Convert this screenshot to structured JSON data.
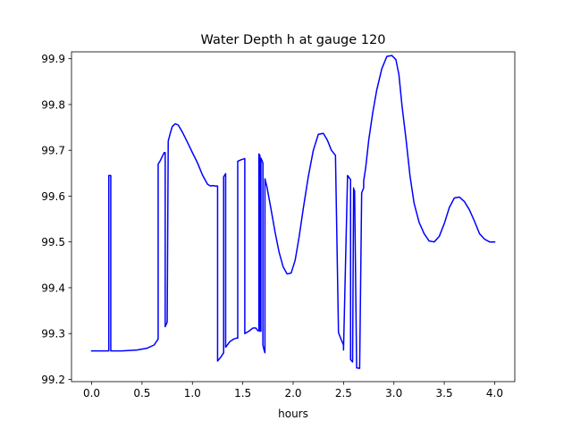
{
  "chart_data": {
    "type": "line",
    "title": "Water Depth h at gauge 120",
    "xlabel": "hours",
    "ylabel": "",
    "xlim": [
      -0.2,
      4.2
    ],
    "ylim": [
      99.195,
      99.915
    ],
    "xticks": [
      0.0,
      0.5,
      1.0,
      1.5,
      2.0,
      2.5,
      3.0,
      3.5,
      4.0
    ],
    "xtick_labels": [
      "0.0",
      "0.5",
      "1.0",
      "1.5",
      "2.0",
      "2.5",
      "3.0",
      "3.5",
      "4.0"
    ],
    "yticks": [
      99.2,
      99.3,
      99.4,
      99.5,
      99.6,
      99.7,
      99.8,
      99.9
    ],
    "ytick_labels": [
      "99.2",
      "99.3",
      "99.4",
      "99.5",
      "99.6",
      "99.7",
      "99.8",
      "99.9"
    ],
    "grid": false,
    "series": [
      {
        "color": "#0000ff",
        "x": [
          0.0,
          0.17,
          0.17,
          0.18,
          0.18,
          0.19,
          0.19,
          0.3,
          0.45,
          0.55,
          0.62,
          0.66,
          0.66,
          0.68,
          0.72,
          0.73,
          0.73,
          0.75,
          0.75,
          0.76,
          0.78,
          0.8,
          0.83,
          0.86,
          0.9,
          0.95,
          1.0,
          1.05,
          1.1,
          1.15,
          1.18,
          1.2,
          1.23,
          1.25,
          1.25,
          1.28,
          1.31,
          1.31,
          1.33,
          1.33,
          1.37,
          1.41,
          1.44,
          1.45,
          1.45,
          1.48,
          1.52,
          1.52,
          1.56,
          1.6,
          1.63,
          1.65,
          1.66,
          1.66,
          1.67,
          1.67,
          1.68,
          1.68,
          1.69,
          1.7,
          1.7,
          1.71,
          1.72,
          1.72,
          1.74,
          1.78,
          1.82,
          1.86,
          1.9,
          1.94,
          1.98,
          2.02,
          2.06,
          2.1,
          2.15,
          2.2,
          2.25,
          2.3,
          2.34,
          2.38,
          2.42,
          2.45,
          2.48,
          2.5,
          2.5,
          2.54,
          2.57,
          2.57,
          2.59,
          2.6,
          2.6,
          2.61,
          2.61,
          2.63,
          2.66,
          2.66,
          2.68,
          2.68,
          2.7,
          2.7,
          2.72,
          2.75,
          2.79,
          2.83,
          2.88,
          2.93,
          2.98,
          3.02,
          3.05,
          3.08,
          3.12,
          3.16,
          3.2,
          3.25,
          3.3,
          3.35,
          3.4,
          3.45,
          3.5,
          3.55,
          3.6,
          3.65,
          3.7,
          3.75,
          3.8,
          3.85,
          3.9,
          3.95,
          4.0
        ],
        "y": [
          99.262,
          99.262,
          99.645,
          99.645,
          99.645,
          99.645,
          99.262,
          99.262,
          99.264,
          99.268,
          99.275,
          99.288,
          99.67,
          99.677,
          99.695,
          99.695,
          99.315,
          99.325,
          99.335,
          99.72,
          99.737,
          99.752,
          99.758,
          99.755,
          99.74,
          99.718,
          99.695,
          99.673,
          99.646,
          99.626,
          99.622,
          99.623,
          99.622,
          99.622,
          99.24,
          99.248,
          99.258,
          99.642,
          99.649,
          99.27,
          99.282,
          99.288,
          99.29,
          99.29,
          99.676,
          99.679,
          99.682,
          99.3,
          99.305,
          99.312,
          99.312,
          99.306,
          99.306,
          99.692,
          99.689,
          99.305,
          99.305,
          99.683,
          99.678,
          99.672,
          99.275,
          99.265,
          99.258,
          99.638,
          99.62,
          99.572,
          99.522,
          99.478,
          99.446,
          99.43,
          99.432,
          99.46,
          99.512,
          99.572,
          99.642,
          99.7,
          99.735,
          99.737,
          99.722,
          99.7,
          99.689,
          99.302,
          99.285,
          99.275,
          99.264,
          99.645,
          99.636,
          99.243,
          99.238,
          99.618,
          99.615,
          99.612,
          99.612,
          99.225,
          99.224,
          99.224,
          99.605,
          99.607,
          99.618,
          99.633,
          99.662,
          99.722,
          99.782,
          99.832,
          99.878,
          99.905,
          99.907,
          99.898,
          99.865,
          99.798,
          99.725,
          99.644,
          99.585,
          99.543,
          99.518,
          99.502,
          99.5,
          99.512,
          99.54,
          99.575,
          99.596,
          99.598,
          99.588,
          99.57,
          99.545,
          99.518,
          99.506,
          99.5,
          99.5
        ]
      }
    ]
  }
}
